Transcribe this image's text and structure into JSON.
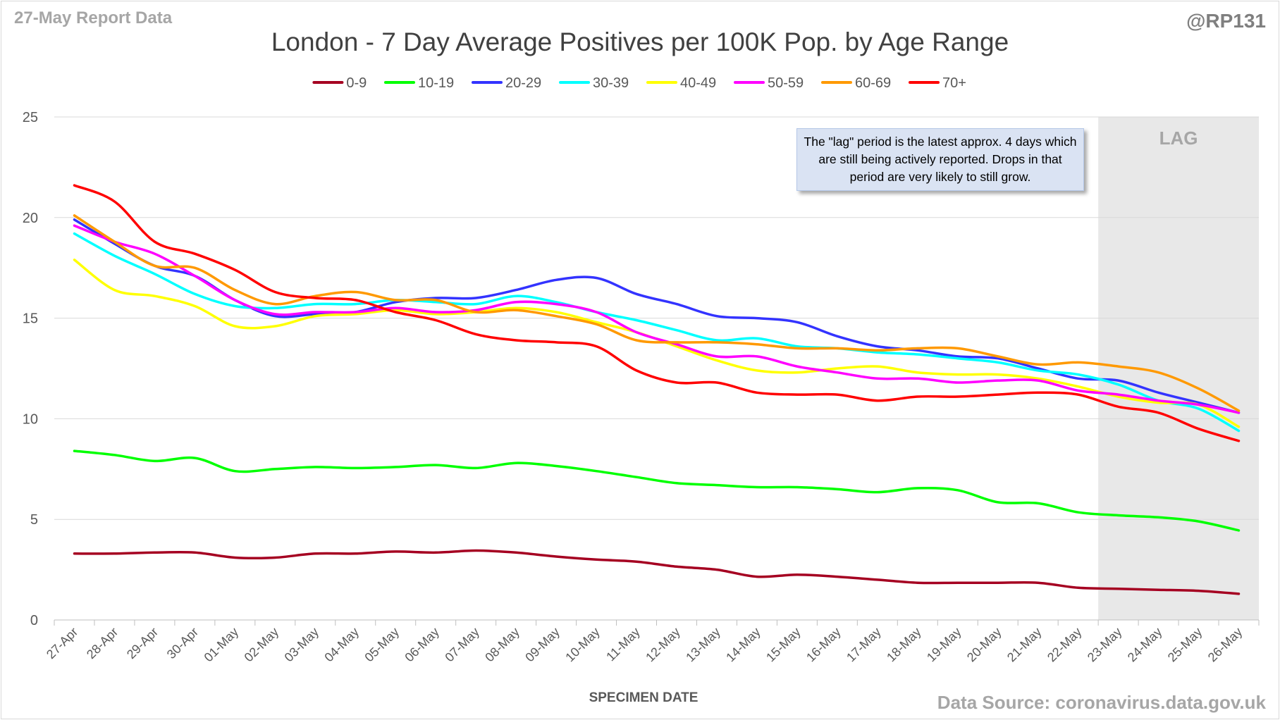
{
  "report_label": "27-May Report Data",
  "handle": "@RP131",
  "source": "Data Source: coronavirus.data.gov.uk",
  "note": "The \"lag\" period is the latest approx. 4 days which are still being actively reported.  Drops in that period are very likely to still grow.",
  "lag_label": "LAG",
  "chart_data": {
    "type": "line",
    "title": "London - 7 Day Average Positives per 100K Pop. by Age Range",
    "xlabel": "SPECIMEN DATE",
    "ylabel": "",
    "ylim": [
      0,
      25
    ],
    "yticks": [
      0,
      5,
      10,
      15,
      20,
      25
    ],
    "grid": true,
    "legend": "top",
    "lag_period": {
      "start": "23-May",
      "end": "26-May"
    },
    "categories": [
      "27-Apr",
      "28-Apr",
      "29-Apr",
      "30-Apr",
      "01-May",
      "02-May",
      "03-May",
      "04-May",
      "05-May",
      "06-May",
      "07-May",
      "08-May",
      "09-May",
      "10-May",
      "11-May",
      "12-May",
      "13-May",
      "14-May",
      "15-May",
      "16-May",
      "17-May",
      "18-May",
      "19-May",
      "20-May",
      "21-May",
      "22-May",
      "23-May",
      "24-May",
      "25-May",
      "26-May"
    ],
    "series": [
      {
        "name": "0-9",
        "color": "#a50021",
        "values": [
          3.3,
          3.3,
          3.35,
          3.35,
          3.1,
          3.1,
          3.3,
          3.3,
          3.4,
          3.35,
          3.45,
          3.35,
          3.15,
          3.0,
          2.9,
          2.65,
          2.5,
          2.15,
          2.25,
          2.15,
          2.0,
          1.85,
          1.85,
          1.85,
          1.85,
          1.6,
          1.55,
          1.5,
          1.45,
          1.3
        ]
      },
      {
        "name": "10-19",
        "color": "#00ff00",
        "values": [
          8.4,
          8.2,
          7.9,
          8.05,
          7.4,
          7.5,
          7.6,
          7.55,
          7.6,
          7.7,
          7.55,
          7.8,
          7.65,
          7.4,
          7.1,
          6.8,
          6.7,
          6.6,
          6.6,
          6.5,
          6.35,
          6.55,
          6.45,
          5.85,
          5.8,
          5.35,
          5.2,
          5.1,
          4.9,
          4.45
        ]
      },
      {
        "name": "20-29",
        "color": "#3333ff",
        "values": [
          19.9,
          18.7,
          17.6,
          17.1,
          15.9,
          15.1,
          15.2,
          15.3,
          15.8,
          16.0,
          16.0,
          16.4,
          16.9,
          17.0,
          16.2,
          15.7,
          15.1,
          15.0,
          14.8,
          14.1,
          13.6,
          13.4,
          13.1,
          13.0,
          12.5,
          12.0,
          11.9,
          11.3,
          10.8,
          10.3
        ]
      },
      {
        "name": "30-39",
        "color": "#00ffff",
        "values": [
          19.2,
          18.1,
          17.2,
          16.2,
          15.6,
          15.5,
          15.7,
          15.7,
          15.9,
          15.8,
          15.7,
          16.1,
          15.8,
          15.3,
          14.9,
          14.4,
          13.9,
          14.0,
          13.6,
          13.5,
          13.3,
          13.2,
          13.0,
          12.8,
          12.4,
          12.2,
          11.7,
          10.9,
          10.5,
          9.4
        ]
      },
      {
        "name": "40-49",
        "color": "#ffff00",
        "values": [
          17.9,
          16.4,
          16.1,
          15.6,
          14.6,
          14.6,
          15.1,
          15.2,
          15.4,
          15.2,
          15.3,
          15.5,
          15.3,
          14.8,
          14.3,
          13.6,
          12.9,
          12.4,
          12.3,
          12.5,
          12.6,
          12.3,
          12.2,
          12.2,
          12.0,
          11.6,
          11.1,
          10.8,
          10.7,
          9.6
        ]
      },
      {
        "name": "50-59",
        "color": "#ff00ff",
        "values": [
          19.6,
          18.8,
          18.2,
          17.1,
          15.9,
          15.2,
          15.3,
          15.3,
          15.5,
          15.3,
          15.4,
          15.8,
          15.7,
          15.3,
          14.3,
          13.7,
          13.1,
          13.1,
          12.6,
          12.3,
          12.0,
          12.0,
          11.8,
          11.9,
          11.9,
          11.4,
          11.2,
          10.9,
          10.7,
          10.3
        ]
      },
      {
        "name": "60-69",
        "color": "#ff9900",
        "values": [
          20.1,
          18.8,
          17.6,
          17.5,
          16.4,
          15.7,
          16.1,
          16.3,
          15.9,
          15.9,
          15.3,
          15.4,
          15.1,
          14.7,
          13.9,
          13.8,
          13.8,
          13.7,
          13.5,
          13.5,
          13.4,
          13.5,
          13.5,
          13.1,
          12.7,
          12.8,
          12.6,
          12.3,
          11.5,
          10.4
        ]
      },
      {
        "name": "70+",
        "color": "#ff0000",
        "values": [
          21.6,
          20.8,
          18.8,
          18.2,
          17.4,
          16.3,
          16.0,
          15.9,
          15.3,
          14.9,
          14.2,
          13.9,
          13.8,
          13.6,
          12.4,
          11.8,
          11.8,
          11.3,
          11.2,
          11.2,
          10.9,
          11.1,
          11.1,
          11.2,
          11.3,
          11.2,
          10.6,
          10.3,
          9.5,
          8.9
        ]
      }
    ]
  }
}
